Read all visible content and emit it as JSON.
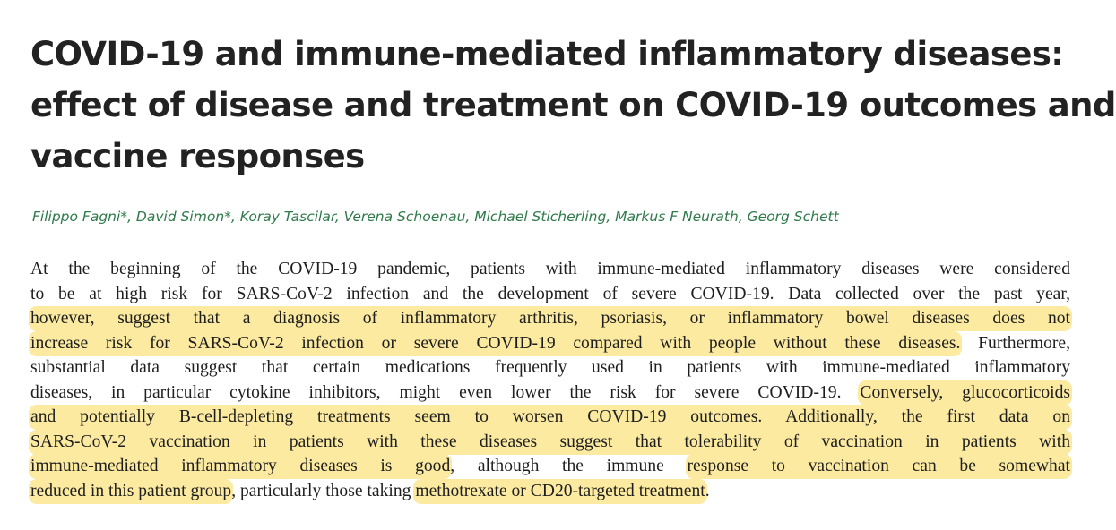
{
  "title_lines": [
    "COVID-19 and immune-mediated inflammatory diseases:",
    "effect of disease and treatment on COVID-19 outcomes and",
    "vaccine responses"
  ],
  "authors": "Filippo Fagni*, David Simon*, Koray Tascilar, Verena Schoenau, Michael Sticherling, Markus F Neurath, Georg Schett",
  "abstract": {
    "line1": "At the beginning of the COVID-19 pandemic, patients with immune-mediated inflammatory diseases were considered",
    "line2": "to be at high risk for SARS-CoV-2 infection and the development of severe COVID-19. Data collected over the past year,",
    "line3_hl": "however, suggest that a diagnosis of inflammatory arthritis, psoriasis, or inflammatory bowel diseases does not",
    "line4_hl": "increase risk for SARS-CoV-2 infection or severe COVID-19 compared with people without these diseases.",
    "line4_rest": " Furthermore,",
    "line5": "substantial data suggest that certain medications frequently used in patients with immune-mediated inflammatory",
    "line6_plain": "diseases, in particular cytokine inhibitors, might even lower the risk for severe COVID-19. ",
    "line6_hl": "Conversely, glucocorticoids",
    "line7_hl": "and potentially B-cell-depleting treatments seem to worsen COVID-19 outcomes. Additionally, the first data on",
    "line8_hl": "SARS-CoV-2 vaccination in patients with these diseases suggest that tolerability of vaccination in patients with",
    "line9_hl1": "immune-mediated inflammatory diseases is good",
    "line9_plain": ", although the immune ",
    "line9_hl2": "response to vaccination can be somewhat",
    "line10_hl1": "reduced in this patient group",
    "line10_plain": ", particularly those taking ",
    "line10_hl2": "methotrexate or CD20-targeted treatment",
    "line10_end": "."
  },
  "colors": {
    "title": "#222222",
    "authors": "#2e7a4a",
    "highlight": "#fbeaa0"
  }
}
